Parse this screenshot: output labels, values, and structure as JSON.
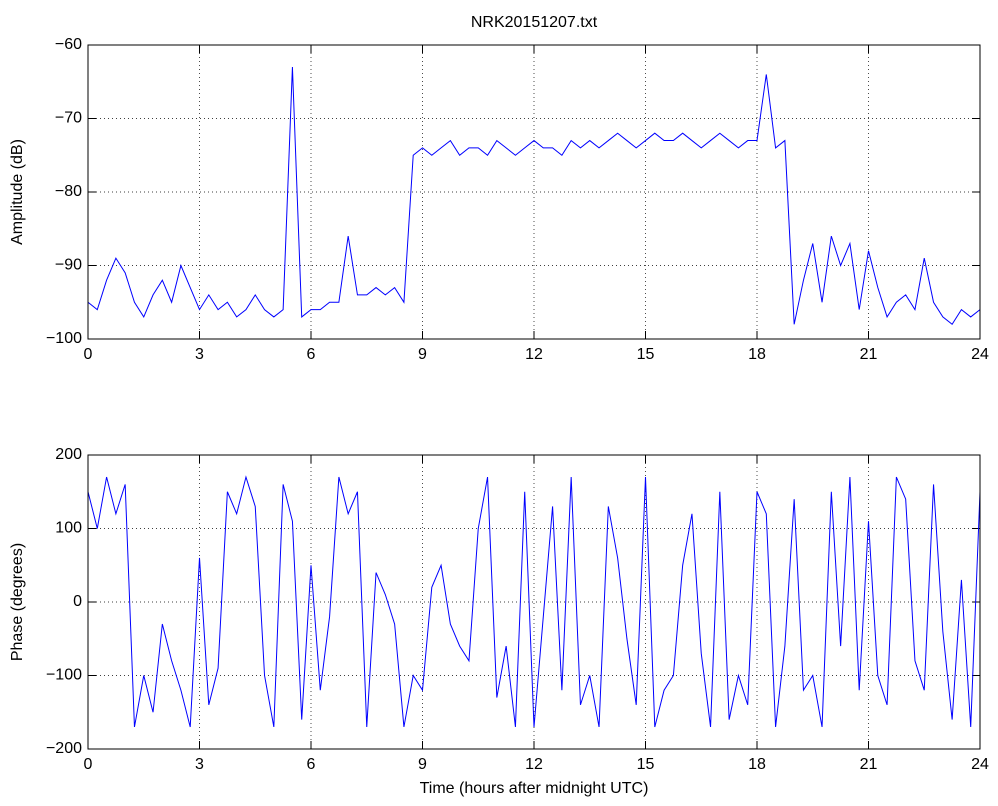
{
  "chart_data": [
    {
      "type": "line",
      "title": "NRK20151207.txt",
      "ylabel": "Amplitude (dB)",
      "grid": true,
      "xlim": [
        0,
        24
      ],
      "xticks": [
        0,
        3,
        6,
        9,
        12,
        15,
        18,
        21,
        24
      ],
      "ylim": [
        -100,
        -60
      ],
      "yticks": [
        {
          "value": -100,
          "label": "−100"
        },
        {
          "value": -90,
          "label": "−90"
        },
        {
          "value": -80,
          "label": "−80"
        },
        {
          "value": -70,
          "label": "−70"
        },
        {
          "value": -60,
          "label": "−60"
        }
      ],
      "x": [
        0,
        0.25,
        0.5,
        0.75,
        1,
        1.25,
        1.5,
        1.75,
        2,
        2.25,
        2.5,
        2.75,
        3,
        3.25,
        3.5,
        3.75,
        4,
        4.25,
        4.5,
        4.75,
        5,
        5.25,
        5.5,
        5.75,
        6,
        6.25,
        6.5,
        6.75,
        7,
        7.25,
        7.5,
        7.75,
        8,
        8.25,
        8.5,
        8.75,
        9,
        9.25,
        9.5,
        9.75,
        10,
        10.25,
        10.5,
        10.75,
        11,
        11.25,
        11.5,
        11.75,
        12,
        12.25,
        12.5,
        12.75,
        13,
        13.25,
        13.5,
        13.75,
        14,
        14.25,
        14.5,
        14.75,
        15,
        15.25,
        15.5,
        15.75,
        16,
        16.25,
        16.5,
        16.75,
        17,
        17.25,
        17.5,
        17.75,
        18,
        18.25,
        18.5,
        18.75,
        19,
        19.25,
        19.5,
        19.75,
        20,
        20.25,
        20.5,
        20.75,
        21,
        21.25,
        21.5,
        21.75,
        22,
        22.25,
        22.5,
        22.75,
        23,
        23.25,
        23.5,
        23.75,
        24
      ],
      "series": [
        {
          "color": "#0000ff",
          "values": [
            -95,
            -96,
            -92,
            -89,
            -91,
            -95,
            -97,
            -94,
            -92,
            -95,
            -90,
            -93,
            -96,
            -94,
            -96,
            -95,
            -97,
            -96,
            -94,
            -96,
            -97,
            -96,
            -63,
            -97,
            -96,
            -96,
            -95,
            -95,
            -86,
            -94,
            -94,
            -93,
            -94,
            -93,
            -95,
            -75,
            -74,
            -75,
            -74,
            -73,
            -75,
            -74,
            -74,
            -75,
            -73,
            -74,
            -75,
            -74,
            -73,
            -74,
            -74,
            -75,
            -73,
            -74,
            -73,
            -74,
            -73,
            -72,
            -73,
            -74,
            -73,
            -72,
            -73,
            -73,
            -72,
            -73,
            -74,
            -73,
            -72,
            -73,
            -74,
            -73,
            -73,
            -64,
            -74,
            -73,
            -98,
            -92,
            -87,
            -95,
            -86,
            -90,
            -87,
            -96,
            -88,
            -93,
            -97,
            -95,
            -94,
            -96,
            -89,
            -95,
            -97,
            -98,
            -96,
            -97,
            -96
          ]
        }
      ]
    },
    {
      "type": "line",
      "ylabel": "Phase (degrees)",
      "xlabel": "Time (hours after midnight UTC)",
      "grid": true,
      "xlim": [
        0,
        24
      ],
      "xticks": [
        0,
        3,
        6,
        9,
        12,
        15,
        18,
        21,
        24
      ],
      "ylim": [
        -200,
        200
      ],
      "yticks": [
        {
          "value": -200,
          "label": "−200"
        },
        {
          "value": -100,
          "label": "−100"
        },
        0,
        100,
        200
      ],
      "x": [
        0,
        0.25,
        0.5,
        0.75,
        1,
        1.25,
        1.5,
        1.75,
        2,
        2.25,
        2.5,
        2.75,
        3,
        3.25,
        3.5,
        3.75,
        4,
        4.25,
        4.5,
        4.75,
        5,
        5.25,
        5.5,
        5.75,
        6,
        6.25,
        6.5,
        6.75,
        7,
        7.25,
        7.5,
        7.75,
        8,
        8.25,
        8.5,
        8.75,
        9,
        9.25,
        9.5,
        9.75,
        10,
        10.25,
        10.5,
        10.75,
        11,
        11.25,
        11.5,
        11.75,
        12,
        12.25,
        12.5,
        12.75,
        13,
        13.25,
        13.5,
        13.75,
        14,
        14.25,
        14.5,
        14.75,
        15,
        15.25,
        15.5,
        15.75,
        16,
        16.25,
        16.5,
        16.75,
        17,
        17.25,
        17.5,
        17.75,
        18,
        18.25,
        18.5,
        18.75,
        19,
        19.25,
        19.5,
        19.75,
        20,
        20.25,
        20.5,
        20.75,
        21,
        21.25,
        21.5,
        21.75,
        22,
        22.25,
        22.5,
        22.75,
        23,
        23.25,
        23.5,
        23.75,
        24
      ],
      "series": [
        {
          "color": "#0000ff",
          "values": [
            150,
            100,
            170,
            120,
            160,
            -170,
            -100,
            -150,
            -30,
            -80,
            -120,
            -170,
            60,
            -140,
            -90,
            150,
            120,
            170,
            130,
            -100,
            -170,
            160,
            110,
            -160,
            50,
            -120,
            -20,
            170,
            120,
            150,
            -170,
            40,
            10,
            -30,
            -170,
            -100,
            -120,
            20,
            50,
            -30,
            -60,
            -80,
            100,
            170,
            -130,
            -60,
            -170,
            150,
            -170,
            -20,
            130,
            -120,
            170,
            -140,
            -100,
            -170,
            130,
            60,
            -50,
            -140,
            170,
            -170,
            -120,
            -100,
            50,
            120,
            -70,
            -170,
            150,
            -160,
            -100,
            -140,
            150,
            120,
            -170,
            -60,
            140,
            -120,
            -100,
            -170,
            150,
            -60,
            170,
            -120,
            110,
            -100,
            -140,
            170,
            140,
            -80,
            -120,
            160,
            -40,
            -160,
            30,
            -170,
            150
          ]
        }
      ]
    }
  ]
}
